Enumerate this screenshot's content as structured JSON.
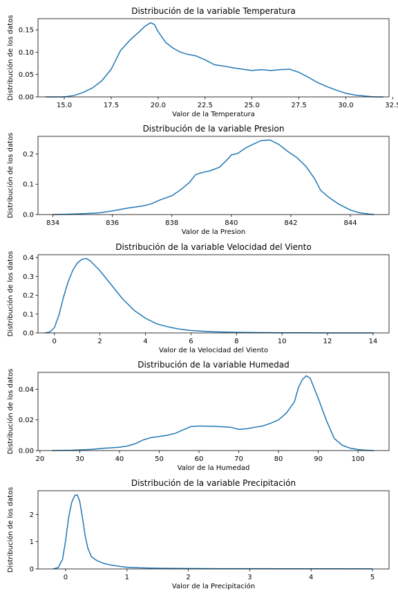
{
  "chart_data": [
    {
      "type": "line",
      "title": "Distribución de la variable Temperatura",
      "xlabel": "Valor de la Temperatura",
      "ylabel": "Distribución de los datos",
      "xlim": [
        13.6,
        32.3
      ],
      "ylim": [
        0,
        0.175
      ],
      "xticks": [
        "15.0",
        "17.5",
        "20.0",
        "22.5",
        "25.0",
        "27.5",
        "30.0",
        "32.5"
      ],
      "xtick_values": [
        15,
        17.5,
        20,
        22.5,
        25,
        27.5,
        30,
        32.5
      ],
      "yticks": [
        "0.00",
        "0.05",
        "0.10",
        "0.15"
      ],
      "ytick_values": [
        0,
        0.05,
        0.1,
        0.15
      ],
      "series": [
        {
          "x": [
            14.0,
            15.0,
            15.5,
            16.0,
            16.5,
            17.0,
            17.5,
            18.0,
            18.5,
            19.0,
            19.3,
            19.6,
            19.8,
            20.0,
            20.4,
            20.8,
            21.2,
            21.6,
            22.0,
            22.5,
            23.0,
            23.5,
            24.0,
            24.5,
            25.0,
            25.5,
            26.0,
            26.5,
            27.0,
            27.5,
            28.0,
            28.5,
            29.0,
            29.5,
            30.0,
            30.5,
            31.0,
            31.5,
            32.0
          ],
          "y": [
            0.0,
            0.0,
            0.003,
            0.01,
            0.02,
            0.036,
            0.062,
            0.104,
            0.127,
            0.146,
            0.158,
            0.166,
            0.162,
            0.146,
            0.122,
            0.109,
            0.1,
            0.095,
            0.092,
            0.083,
            0.072,
            0.069,
            0.065,
            0.062,
            0.059,
            0.061,
            0.059,
            0.061,
            0.062,
            0.055,
            0.044,
            0.032,
            0.023,
            0.015,
            0.008,
            0.004,
            0.002,
            0.0,
            0.0
          ]
        }
      ]
    },
    {
      "type": "line",
      "title": "Distribución de la variable Presion",
      "xlabel": "Valor de la Presion",
      "ylabel": "Distribución de los datos",
      "xlim": [
        833.5,
        845.3
      ],
      "ylim": [
        0,
        0.258
      ],
      "xticks": [
        "834",
        "836",
        "838",
        "840",
        "842",
        "844"
      ],
      "xtick_values": [
        834,
        836,
        838,
        840,
        842,
        844
      ],
      "yticks": [
        "0.0",
        "0.1",
        "0.2"
      ],
      "ytick_values": [
        0,
        0.1,
        0.2
      ],
      "series": [
        {
          "x": [
            834.0,
            834.5,
            835.0,
            835.5,
            836.0,
            836.5,
            837.0,
            837.3,
            837.6,
            838.0,
            838.3,
            838.6,
            838.8,
            839.0,
            839.3,
            839.6,
            839.9,
            840.0,
            840.2,
            840.5,
            840.8,
            841.0,
            841.3,
            841.6,
            841.9,
            842.2,
            842.5,
            842.8,
            843.0,
            843.3,
            843.6,
            844.0,
            844.3,
            844.6,
            844.8
          ],
          "y": [
            0.0,
            0.001,
            0.003,
            0.005,
            0.012,
            0.021,
            0.028,
            0.035,
            0.048,
            0.062,
            0.082,
            0.107,
            0.132,
            0.138,
            0.145,
            0.156,
            0.185,
            0.197,
            0.201,
            0.221,
            0.235,
            0.244,
            0.246,
            0.231,
            0.208,
            0.188,
            0.16,
            0.118,
            0.08,
            0.055,
            0.035,
            0.015,
            0.006,
            0.002,
            0.0
          ]
        }
      ]
    },
    {
      "type": "line",
      "title": "Distribución de la variable Velocidad del Viento",
      "xlabel": "Valor de la Velocidad del Viento",
      "ylabel": "Distribución de los datos",
      "xlim": [
        -0.72,
        14.7
      ],
      "ylim": [
        0,
        0.415
      ],
      "xticks": [
        "0",
        "2",
        "4",
        "6",
        "8",
        "10",
        "12",
        "14"
      ],
      "xtick_values": [
        0,
        2,
        4,
        6,
        8,
        10,
        12,
        14
      ],
      "yticks": [
        "0.0",
        "0.1",
        "0.2",
        "0.3",
        "0.4"
      ],
      "ytick_values": [
        0,
        0.1,
        0.2,
        0.3,
        0.4
      ],
      "series": [
        {
          "x": [
            -0.4,
            -0.2,
            0.0,
            0.2,
            0.4,
            0.6,
            0.8,
            1.0,
            1.2,
            1.4,
            1.6,
            1.8,
            2.0,
            2.3,
            2.6,
            3.0,
            3.5,
            4.0,
            4.5,
            5.0,
            5.5,
            6.0,
            6.5,
            7.0,
            8.0,
            9.0,
            10.0,
            11.0,
            12.0,
            13.0,
            14.0
          ],
          "y": [
            0.0,
            0.005,
            0.028,
            0.095,
            0.19,
            0.27,
            0.33,
            0.37,
            0.39,
            0.395,
            0.38,
            0.355,
            0.33,
            0.285,
            0.24,
            0.18,
            0.12,
            0.078,
            0.048,
            0.032,
            0.02,
            0.013,
            0.009,
            0.006,
            0.003,
            0.002,
            0.001,
            0.001,
            0.0,
            0.0,
            0.0
          ]
        }
      ]
    },
    {
      "type": "line",
      "title": "Distribución de la variable Humedad",
      "xlabel": "Valor de la Humedad",
      "ylabel": "Distribución de los datos",
      "xlim": [
        19.5,
        107.8
      ],
      "ylim": [
        0,
        0.051
      ],
      "xticks": [
        "20",
        "30",
        "40",
        "50",
        "60",
        "70",
        "80",
        "90",
        "100"
      ],
      "xtick_values": [
        20,
        30,
        40,
        50,
        60,
        70,
        80,
        90,
        100
      ],
      "yticks": [
        "0.00",
        "0.02",
        "0.04"
      ],
      "ytick_values": [
        0,
        0.02,
        0.04
      ],
      "series": [
        {
          "x": [
            23,
            28,
            33,
            36,
            38,
            40,
            42,
            44,
            46,
            48,
            50,
            52,
            54,
            56,
            58,
            60,
            62,
            64,
            66,
            68,
            70,
            72,
            74,
            76,
            78,
            80,
            82,
            84,
            85,
            86,
            87,
            88,
            90,
            92,
            94,
            96,
            98,
            100,
            102,
            104
          ],
          "y": [
            0.0,
            0.0002,
            0.0008,
            0.0015,
            0.0018,
            0.0022,
            0.003,
            0.0045,
            0.007,
            0.0085,
            0.0092,
            0.01,
            0.0112,
            0.0135,
            0.0157,
            0.016,
            0.0159,
            0.0158,
            0.0155,
            0.0152,
            0.0138,
            0.0142,
            0.0152,
            0.016,
            0.0178,
            0.02,
            0.0245,
            0.0318,
            0.041,
            0.0463,
            0.0488,
            0.047,
            0.034,
            0.02,
            0.008,
            0.0035,
            0.0016,
            0.0007,
            0.0002,
            0.0
          ]
        }
      ]
    },
    {
      "type": "line",
      "title": "Distribución de la variable Precipitación",
      "xlabel": "Valor de la Precipitación",
      "ylabel": "Distribución de los datos",
      "xlim": [
        -0.45,
        5.27
      ],
      "ylim": [
        0,
        2.87
      ],
      "xticks": [
        "0",
        "1",
        "2",
        "3",
        "4",
        "5"
      ],
      "xtick_values": [
        0,
        1,
        2,
        3,
        4,
        5
      ],
      "yticks": [
        "0",
        "1",
        "2"
      ],
      "ytick_values": [
        0,
        1,
        2
      ],
      "series": [
        {
          "x": [
            -0.2,
            -0.12,
            -0.05,
            0.0,
            0.05,
            0.1,
            0.15,
            0.19,
            0.23,
            0.28,
            0.32,
            0.36,
            0.42,
            0.5,
            0.6,
            0.7,
            0.8,
            0.9,
            1.0,
            1.2,
            1.5,
            2.0,
            2.5,
            3.0,
            3.5,
            4.0,
            4.5,
            5.0
          ],
          "y": [
            0.0,
            0.05,
            0.35,
            1.05,
            1.9,
            2.45,
            2.7,
            2.72,
            2.48,
            1.8,
            1.2,
            0.78,
            0.45,
            0.32,
            0.22,
            0.16,
            0.12,
            0.09,
            0.06,
            0.04,
            0.025,
            0.015,
            0.01,
            0.01,
            0.008,
            0.006,
            0.005,
            0.004
          ]
        }
      ]
    }
  ]
}
